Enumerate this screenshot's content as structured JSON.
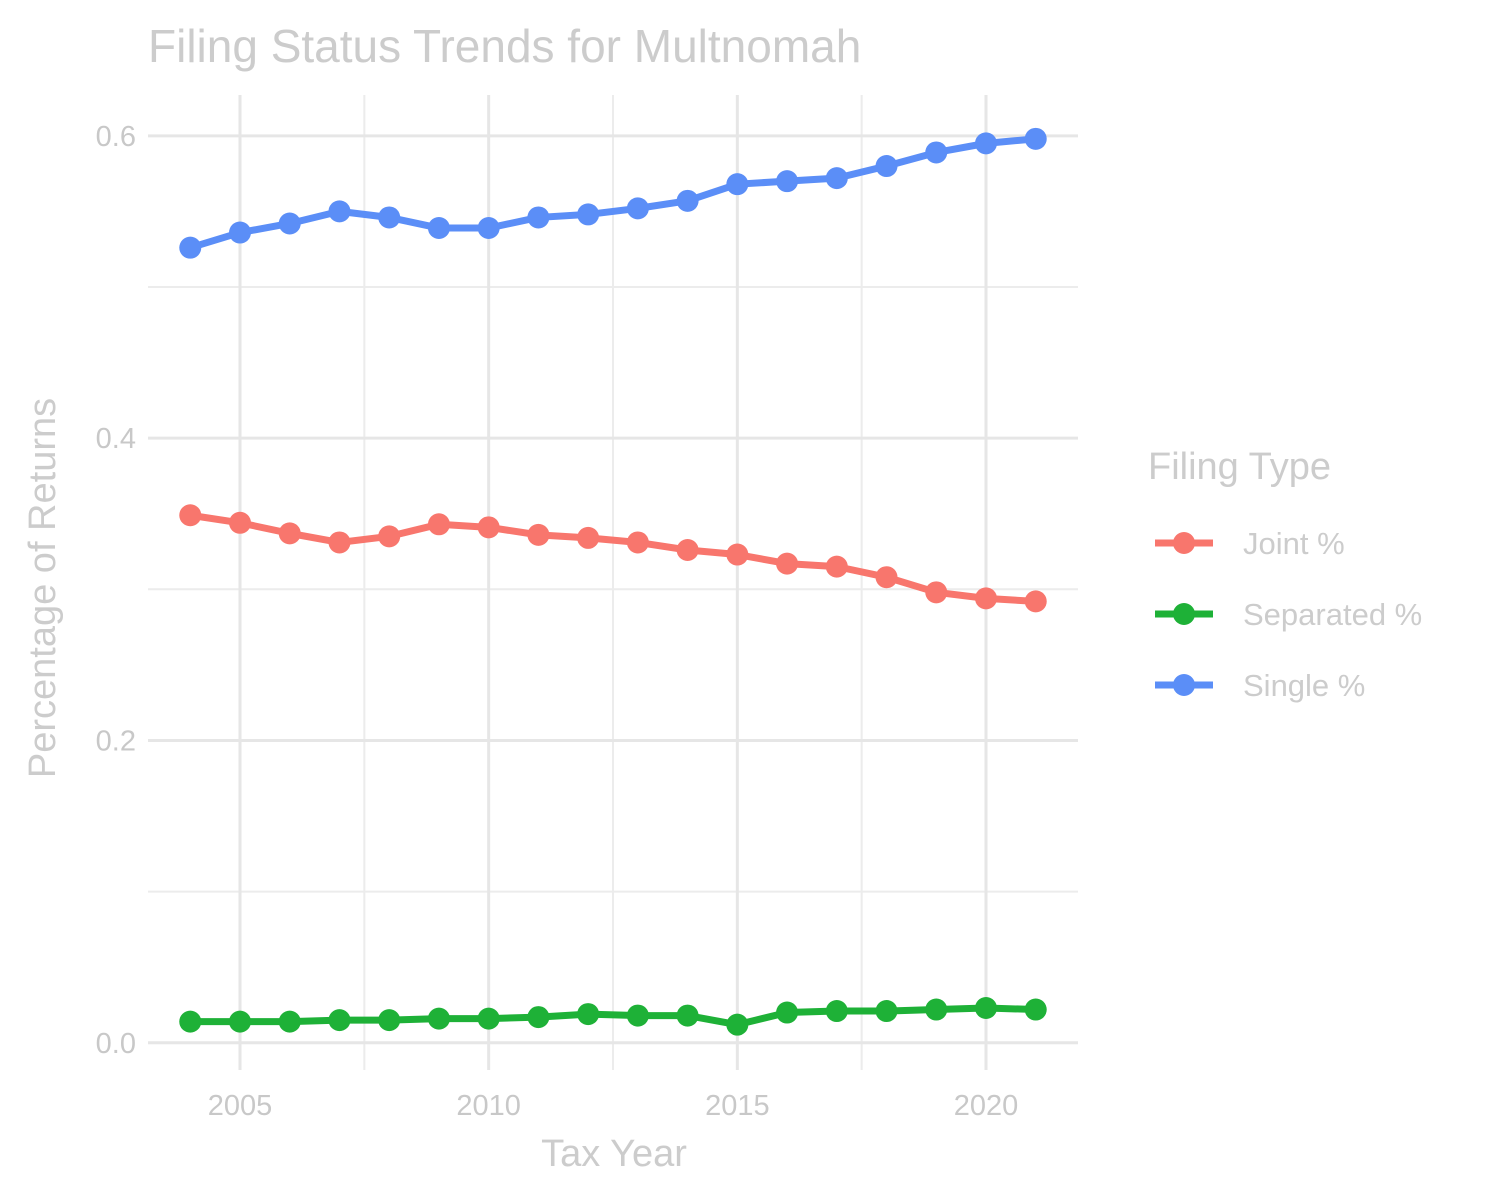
{
  "chart_data": {
    "type": "line",
    "title": "Filing Status Trends for Multnomah",
    "xlabel": "Tax Year",
    "ylabel": "Percentage of Returns",
    "x": [
      2004,
      2005,
      2006,
      2007,
      2008,
      2009,
      2010,
      2011,
      2012,
      2013,
      2014,
      2015,
      2016,
      2017,
      2018,
      2019,
      2020,
      2021
    ],
    "xlim": [
      2003.15,
      2021.85
    ],
    "ylim": [
      -0.018,
      0.627
    ],
    "x_ticks": [
      2005,
      2010,
      2015,
      2020
    ],
    "x_tick_labels": [
      "2005",
      "2010",
      "2015",
      "2020"
    ],
    "x_minor_ticks": [
      2007.5,
      2012.5,
      2017.5
    ],
    "y_ticks": [
      0.0,
      0.2,
      0.4,
      0.6
    ],
    "y_tick_labels": [
      "0.0",
      "0.2",
      "0.4",
      "0.6"
    ],
    "y_minor_ticks": [
      0.1,
      0.3,
      0.5
    ],
    "grid": true,
    "legend": {
      "title": "Filing Type",
      "position": "right"
    },
    "series": [
      {
        "name": "Joint %",
        "color": "#f8766d",
        "values": [
          0.349,
          0.344,
          0.337,
          0.331,
          0.335,
          0.343,
          0.341,
          0.336,
          0.334,
          0.331,
          0.326,
          0.323,
          0.317,
          0.315,
          0.308,
          0.298,
          0.294,
          0.292
        ]
      },
      {
        "name": "Separated %",
        "color": "#1eb137",
        "values": [
          0.014,
          0.014,
          0.014,
          0.015,
          0.015,
          0.016,
          0.016,
          0.017,
          0.019,
          0.018,
          0.018,
          0.012,
          0.02,
          0.021,
          0.021,
          0.022,
          0.023,
          0.022
        ]
      },
      {
        "name": "Single %",
        "color": "#5b8ef7",
        "values": [
          0.526,
          0.536,
          0.542,
          0.55,
          0.546,
          0.539,
          0.539,
          0.546,
          0.548,
          0.552,
          0.557,
          0.568,
          0.57,
          0.572,
          0.58,
          0.589,
          0.595,
          0.598
        ]
      }
    ]
  }
}
